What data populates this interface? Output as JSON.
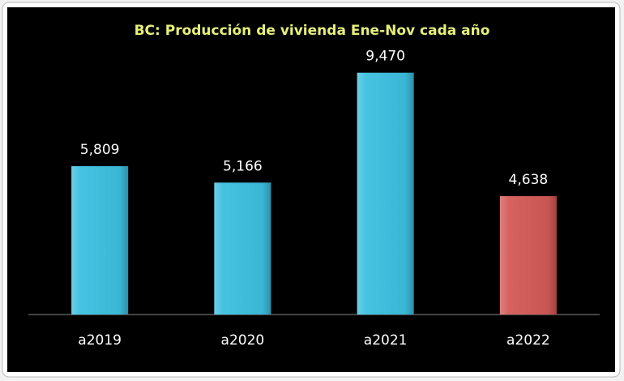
{
  "chart_data": {
    "type": "bar",
    "title": "BC: Producción de vivienda  Ene-Nov cada año",
    "categories": [
      "a2019",
      "a2020",
      "a2021",
      "a2022"
    ],
    "values": [
      5809,
      5166,
      9470,
      4638
    ],
    "value_labels": [
      "5,809",
      "5,166",
      "9,470",
      "4,638"
    ],
    "colors": [
      "#3cc0e0",
      "#3cc0e0",
      "#3cc0e0",
      "#d45a58"
    ],
    "ylim": [
      0,
      10000
    ]
  }
}
